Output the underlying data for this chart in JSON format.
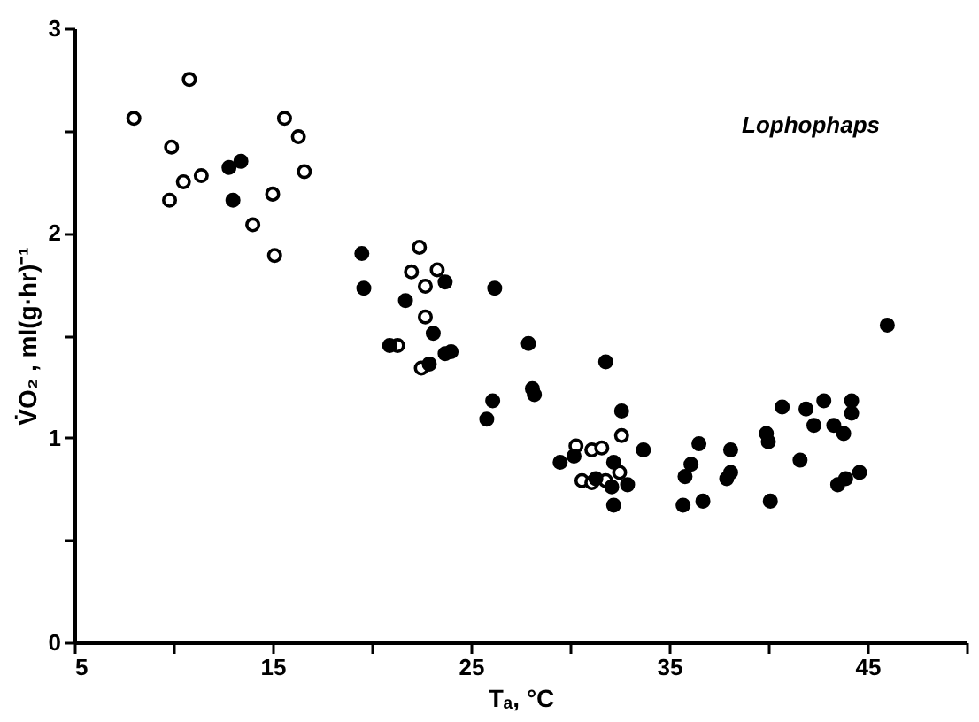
{
  "chart_data": {
    "type": "scatter",
    "xlabel": "Tₐ, °C",
    "ylabel": "V̇O₂ ,  ml(g·hr)⁻¹",
    "annotations": [
      "Lophophaps"
    ],
    "xlim": [
      5,
      50
    ],
    "ylim": [
      0,
      3
    ],
    "xticks": [
      5,
      {
        "value": 10,
        "label": null
      },
      15,
      {
        "value": 20,
        "label": null
      },
      25,
      {
        "value": 30,
        "label": null
      },
      35,
      {
        "value": 40,
        "label": null
      },
      45,
      {
        "value": 50,
        "label": null
      }
    ],
    "yticks": [
      0,
      {
        "value": 0.5,
        "label": null
      },
      1,
      {
        "value": 1.5,
        "label": null
      },
      2,
      {
        "value": 2.5,
        "label": null
      },
      3
    ],
    "grid": false,
    "marker": "circle",
    "series": [
      {
        "color": "#ffffff",
        "x": [
          8.0,
          10.8,
          9.9,
          9.8,
          10.5,
          11.4,
          15.6,
          16.3,
          16.6,
          15.0,
          14.0,
          15.1,
          22.4,
          22.0,
          23.3,
          22.7,
          22.7,
          21.3,
          22.5,
          30.3,
          31.1,
          31.6,
          32.6,
          30.6,
          31.1,
          31.8,
          32.5
        ],
        "values": [
          2.56,
          2.75,
          2.42,
          2.16,
          2.25,
          2.28,
          2.56,
          2.47,
          2.3,
          2.19,
          2.04,
          1.89,
          1.93,
          1.81,
          1.82,
          1.74,
          1.59,
          1.45,
          1.34,
          0.96,
          0.94,
          0.95,
          1.01,
          0.79,
          0.78,
          0.79,
          0.83
        ]
      },
      {
        "color": "#000000",
        "x": [
          12.8,
          13.4,
          13.0,
          19.6,
          19.5,
          21.7,
          23.7,
          26.2,
          23.1,
          20.9,
          22.9,
          23.7,
          24.0,
          27.9,
          31.8,
          28.1,
          28.2,
          26.1,
          25.8,
          32.6,
          33.7,
          29.5,
          30.2,
          32.2,
          32.2,
          32.9,
          32.1,
          31.3,
          36.5,
          36.1,
          35.8,
          35.7,
          36.7,
          38.1,
          38.1,
          37.9,
          39.9,
          40.0,
          40.1,
          40.7,
          41.6,
          41.9,
          42.3,
          42.8,
          43.3,
          43.8,
          44.2,
          44.2,
          43.5,
          43.9,
          44.6,
          46.0
        ],
        "values": [
          2.32,
          2.35,
          2.16,
          1.73,
          1.9,
          1.67,
          1.76,
          1.73,
          1.51,
          1.45,
          1.36,
          1.41,
          1.42,
          1.46,
          1.37,
          1.24,
          1.21,
          1.18,
          1.09,
          1.13,
          0.94,
          0.88,
          0.91,
          0.88,
          0.67,
          0.77,
          0.76,
          0.8,
          0.97,
          0.87,
          0.81,
          0.67,
          0.69,
          0.94,
          0.83,
          0.8,
          1.02,
          0.98,
          0.69,
          1.15,
          0.89,
          1.14,
          1.06,
          1.18,
          1.06,
          1.02,
          1.18,
          1.12,
          0.77,
          0.8,
          0.83,
          1.55
        ]
      }
    ]
  }
}
